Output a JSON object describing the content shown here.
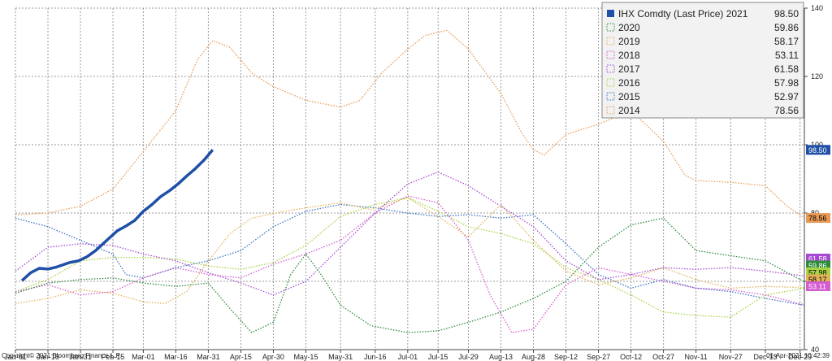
{
  "chart_data": {
    "type": "line",
    "x_tick_labels": [
      "Jan-01",
      "Jan-16",
      "Jan-31",
      "Feb-15",
      "Mar-01",
      "Mar-16",
      "Mar-31",
      "Apr-15",
      "Apr-30",
      "May-15",
      "May-31",
      "Jun-16",
      "Jul-01",
      "Jul-15",
      "Jul-29",
      "Aug-13",
      "Aug-28",
      "Sep-12",
      "Sep-27",
      "Oct-12",
      "Oct-27",
      "Nov-11",
      "Nov-27",
      "Dec-13",
      "Dec-29"
    ],
    "x_tick_days": [
      1,
      16,
      31,
      46,
      60,
      75,
      90,
      105,
      120,
      135,
      151,
      167,
      182,
      196,
      210,
      225,
      240,
      255,
      270,
      285,
      300,
      315,
      331,
      347,
      363
    ],
    "xlim": [
      1,
      365
    ],
    "ylim": [
      40,
      140
    ],
    "y_ticks": [
      40,
      60,
      80,
      100,
      120,
      140
    ],
    "grid": true,
    "legend_position": "top-right",
    "series": [
      {
        "name": "IHX Comdty (Last Price) 2021",
        "last": "98.50",
        "color": "#1f4fa6",
        "style": "solid",
        "points": [
          [
            4,
            60.2
          ],
          [
            8,
            62.5
          ],
          [
            12,
            63.8
          ],
          [
            16,
            63.6
          ],
          [
            20,
            64.2
          ],
          [
            26,
            65.5
          ],
          [
            30,
            66.0
          ],
          [
            34,
            67.2
          ],
          [
            38,
            69.0
          ],
          [
            44,
            72.5
          ],
          [
            48,
            74.8
          ],
          [
            52,
            76.2
          ],
          [
            56,
            77.8
          ],
          [
            60,
            80.5
          ],
          [
            64,
            82.5
          ],
          [
            68,
            84.8
          ],
          [
            72,
            86.5
          ],
          [
            76,
            88.5
          ],
          [
            80,
            90.8
          ],
          [
            84,
            93.0
          ],
          [
            88,
            95.5
          ],
          [
            92,
            98.5
          ]
        ]
      },
      {
        "name": "2020",
        "last": "59.86",
        "color": "#2e8b3c",
        "style": "dotted",
        "points": [
          [
            1,
            56.5
          ],
          [
            16,
            59.5
          ],
          [
            31,
            60.5
          ],
          [
            46,
            61.0
          ],
          [
            60,
            59.5
          ],
          [
            75,
            58.5
          ],
          [
            90,
            59.5
          ],
          [
            100,
            52.0
          ],
          [
            110,
            45.0
          ],
          [
            120,
            48.0
          ],
          [
            128,
            62.0
          ],
          [
            135,
            68.0
          ],
          [
            142,
            62.0
          ],
          [
            151,
            53.0
          ],
          [
            165,
            47.0
          ],
          [
            182,
            45.0
          ],
          [
            196,
            45.5
          ],
          [
            210,
            48.0
          ],
          [
            225,
            51.0
          ],
          [
            240,
            55.0
          ],
          [
            255,
            60.0
          ],
          [
            270,
            70.0
          ],
          [
            285,
            76.5
          ],
          [
            300,
            78.5
          ],
          [
            315,
            69.0
          ],
          [
            331,
            67.5
          ],
          [
            347,
            66.0
          ],
          [
            365,
            59.86
          ]
        ]
      },
      {
        "name": "2019",
        "last": "58.17",
        "color": "#e3b35a",
        "style": "dotted",
        "points": [
          [
            1,
            53.5
          ],
          [
            16,
            55.0
          ],
          [
            31,
            57.5
          ],
          [
            46,
            56.5
          ],
          [
            60,
            54.0
          ],
          [
            70,
            53.5
          ],
          [
            80,
            57.0
          ],
          [
            90,
            66.0
          ],
          [
            100,
            74.0
          ],
          [
            110,
            78.5
          ],
          [
            125,
            80.5
          ],
          [
            140,
            82.0
          ],
          [
            151,
            83.0
          ],
          [
            165,
            81.0
          ],
          [
            182,
            84.5
          ],
          [
            196,
            79.0
          ],
          [
            210,
            73.0
          ],
          [
            225,
            82.5
          ],
          [
            240,
            72.0
          ],
          [
            255,
            63.0
          ],
          [
            270,
            59.0
          ],
          [
            285,
            61.0
          ],
          [
            300,
            64.0
          ],
          [
            315,
            60.5
          ],
          [
            331,
            58.0
          ],
          [
            347,
            58.5
          ],
          [
            365,
            58.17
          ]
        ]
      },
      {
        "name": "2018",
        "last": "53.11",
        "color": "#d45bd0",
        "style": "dotted",
        "points": [
          [
            1,
            57.0
          ],
          [
            16,
            59.0
          ],
          [
            31,
            56.0
          ],
          [
            46,
            57.0
          ],
          [
            60,
            61.0
          ],
          [
            75,
            64.0
          ],
          [
            90,
            62.0
          ],
          [
            105,
            61.0
          ],
          [
            120,
            65.0
          ],
          [
            135,
            68.0
          ],
          [
            151,
            72.0
          ],
          [
            167,
            80.0
          ],
          [
            182,
            85.0
          ],
          [
            196,
            83.0
          ],
          [
            210,
            72.0
          ],
          [
            220,
            56.0
          ],
          [
            230,
            45.0
          ],
          [
            240,
            46.0
          ],
          [
            255,
            59.0
          ],
          [
            270,
            64.0
          ],
          [
            285,
            62.0
          ],
          [
            300,
            60.0
          ],
          [
            315,
            58.0
          ],
          [
            331,
            57.5
          ],
          [
            347,
            56.0
          ],
          [
            365,
            53.11
          ]
        ]
      },
      {
        "name": "2017",
        "last": "61.58",
        "color": "#a64ad4",
        "style": "dotted",
        "points": [
          [
            1,
            63.0
          ],
          [
            16,
            70.0
          ],
          [
            31,
            71.0
          ],
          [
            46,
            70.5
          ],
          [
            60,
            68.0
          ],
          [
            75,
            66.0
          ],
          [
            90,
            62.5
          ],
          [
            105,
            59.5
          ],
          [
            120,
            56.0
          ],
          [
            135,
            60.0
          ],
          [
            151,
            70.0
          ],
          [
            167,
            80.0
          ],
          [
            182,
            88.5
          ],
          [
            196,
            92.0
          ],
          [
            210,
            88.0
          ],
          [
            225,
            82.0
          ],
          [
            240,
            76.0
          ],
          [
            255,
            66.0
          ],
          [
            270,
            60.5
          ],
          [
            285,
            62.0
          ],
          [
            300,
            64.0
          ],
          [
            315,
            63.5
          ],
          [
            331,
            64.0
          ],
          [
            347,
            63.0
          ],
          [
            365,
            61.58
          ]
        ]
      },
      {
        "name": "2016",
        "last": "57.98",
        "color": "#a7d444",
        "style": "dotted",
        "points": [
          [
            1,
            57.0
          ],
          [
            16,
            60.5
          ],
          [
            31,
            66.0
          ],
          [
            46,
            67.0
          ],
          [
            60,
            67.0
          ],
          [
            75,
            66.5
          ],
          [
            90,
            64.5
          ],
          [
            105,
            63.5
          ],
          [
            120,
            65.5
          ],
          [
            135,
            70.5
          ],
          [
            151,
            79.0
          ],
          [
            167,
            82.5
          ],
          [
            182,
            84.5
          ],
          [
            196,
            80.5
          ],
          [
            210,
            76.0
          ],
          [
            225,
            74.0
          ],
          [
            240,
            71.0
          ],
          [
            255,
            64.0
          ],
          [
            270,
            60.5
          ],
          [
            285,
            56.0
          ],
          [
            300,
            51.0
          ],
          [
            315,
            50.0
          ],
          [
            331,
            49.5
          ],
          [
            347,
            56.0
          ],
          [
            365,
            57.98
          ]
        ]
      },
      {
        "name": "2015",
        "last": "52.97",
        "color": "#3a72c7",
        "style": "dotted",
        "points": [
          [
            1,
            78.5
          ],
          [
            16,
            76.0
          ],
          [
            31,
            72.0
          ],
          [
            46,
            68.0
          ],
          [
            52,
            62.0
          ],
          [
            60,
            61.0
          ],
          [
            75,
            64.0
          ],
          [
            90,
            66.0
          ],
          [
            105,
            69.0
          ],
          [
            120,
            76.0
          ],
          [
            135,
            80.5
          ],
          [
            151,
            82.5
          ],
          [
            167,
            81.5
          ],
          [
            182,
            80.0
          ],
          [
            196,
            79.0
          ],
          [
            210,
            79.5
          ],
          [
            225,
            78.5
          ],
          [
            240,
            79.5
          ],
          [
            255,
            71.0
          ],
          [
            270,
            62.0
          ],
          [
            285,
            58.0
          ],
          [
            300,
            60.5
          ],
          [
            315,
            58.0
          ],
          [
            331,
            57.0
          ],
          [
            347,
            55.0
          ],
          [
            365,
            52.97
          ]
        ]
      },
      {
        "name": "2014",
        "last": "78.56",
        "color": "#e89a55",
        "style": "dotted",
        "points": [
          [
            1,
            79.5
          ],
          [
            16,
            80.0
          ],
          [
            31,
            82.0
          ],
          [
            46,
            87.0
          ],
          [
            60,
            98.0
          ],
          [
            75,
            110.0
          ],
          [
            85,
            125.0
          ],
          [
            92,
            130.5
          ],
          [
            100,
            128.5
          ],
          [
            110,
            121.0
          ],
          [
            120,
            117.0
          ],
          [
            135,
            113.0
          ],
          [
            151,
            111.0
          ],
          [
            160,
            113.0
          ],
          [
            170,
            121.0
          ],
          [
            182,
            128.0
          ],
          [
            190,
            132.0
          ],
          [
            200,
            133.5
          ],
          [
            210,
            128.0
          ],
          [
            225,
            115.0
          ],
          [
            235,
            103.0
          ],
          [
            240,
            98.5
          ],
          [
            245,
            97.0
          ],
          [
            255,
            103.0
          ],
          [
            270,
            106.0
          ],
          [
            285,
            110.0
          ],
          [
            300,
            101.0
          ],
          [
            310,
            91.0
          ],
          [
            315,
            89.5
          ],
          [
            331,
            89.0
          ],
          [
            347,
            88.0
          ],
          [
            357,
            82.0
          ],
          [
            365,
            78.56
          ]
        ]
      }
    ]
  },
  "legend": [
    {
      "label": "IHX Comdty (Last Price) 2021",
      "value": "98.50"
    },
    {
      "label": "2020",
      "value": "59.86"
    },
    {
      "label": "2019",
      "value": "58.17"
    },
    {
      "label": "2018",
      "value": "53.11"
    },
    {
      "label": "2017",
      "value": "61.58"
    },
    {
      "label": "2016",
      "value": "57.98"
    },
    {
      "label": "2015",
      "value": "52.97"
    },
    {
      "label": "2014",
      "value": "78.56"
    }
  ],
  "right_tags": [
    {
      "text": "98.50",
      "value": 98.5,
      "bg": "#1f4fa6",
      "fg": "#ffffff"
    },
    {
      "text": "78.56",
      "value": 78.56,
      "bg": "#e89a55",
      "fg": "#000000"
    },
    {
      "text": "61.58",
      "value": 61.58,
      "bg": "#a64ad4",
      "fg": "#ffffff"
    },
    {
      "text": "59.86",
      "value": 59.86,
      "bg": "#2e8b3c",
      "fg": "#ffffff"
    },
    {
      "text": "57.98",
      "value": 57.98,
      "bg": "#a7d444",
      "fg": "#000000"
    },
    {
      "text": "58.17",
      "value": 58.17,
      "bg": "#e3b35a",
      "fg": "#000000"
    },
    {
      "text": "53.11",
      "value": 53.11,
      "bg": "#d45bd0",
      "fg": "#ffffff"
    }
  ],
  "footer": {
    "copyright": "Copyright© 2021 Bloomberg Finance L.P.",
    "timestamp": "01-Apr-2021 10:42:39"
  }
}
